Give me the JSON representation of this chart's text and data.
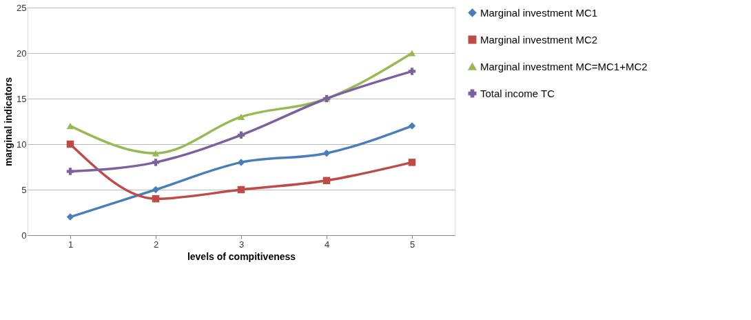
{
  "chart_data": {
    "type": "line",
    "xlabel": "levels of compitiveness",
    "ylabel": "marginal indicators",
    "categories": [
      "1",
      "2",
      "3",
      "4",
      "5"
    ],
    "series": [
      {
        "name": "Marginal investment MC1",
        "color": "#4a7ebb",
        "marker": "diamond",
        "values": [
          2,
          5,
          8,
          9,
          12
        ]
      },
      {
        "name": "Marginal investment MC2",
        "color": "#be4b48",
        "marker": "square",
        "values": [
          10,
          4,
          5,
          6,
          8
        ]
      },
      {
        "name": "Marginal investment MC=MC1+MC2",
        "color": "#98b954",
        "marker": "triangle",
        "values": [
          12,
          9,
          13,
          15,
          20
        ]
      },
      {
        "name": "Total income TC",
        "color": "#7d60a0",
        "marker": "cross",
        "values": [
          7,
          8,
          11,
          15,
          18
        ]
      }
    ],
    "ylim": [
      0,
      25
    ],
    "yticks": [
      0,
      5,
      10,
      15,
      20,
      25
    ],
    "grid": "y",
    "legend": "right",
    "line_style": "solid"
  }
}
